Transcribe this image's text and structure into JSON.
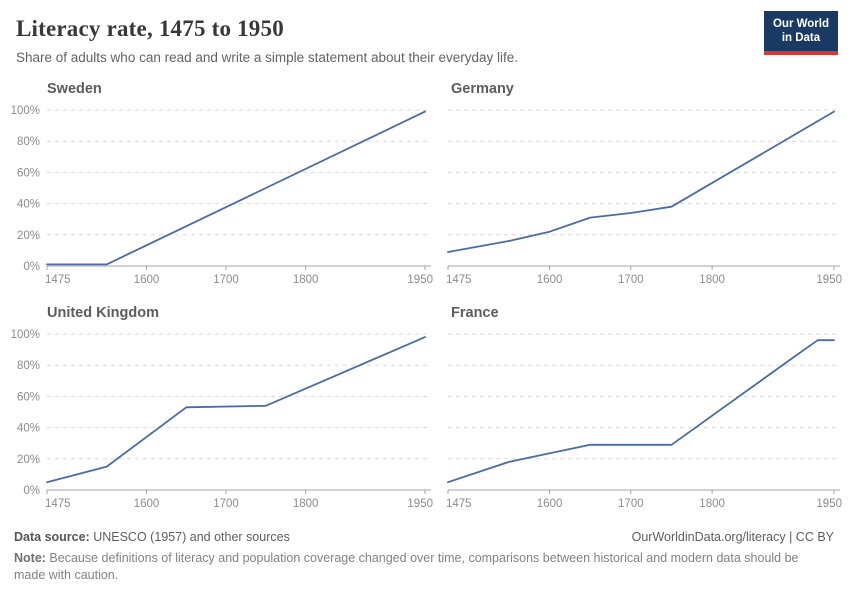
{
  "header": {
    "title": "Literacy rate, 1475 to 1950",
    "subtitle": "Share of adults who can read and write a simple statement about their everyday life.",
    "logo": {
      "line1": "Our World",
      "line2": "in Data"
    }
  },
  "chart_data": {
    "type": "line",
    "x_ticks": [
      1475,
      1600,
      1700,
      1800,
      1950
    ],
    "y_ticks": [
      0,
      20,
      40,
      60,
      80,
      100
    ],
    "xlim": [
      1475,
      1950
    ],
    "ylim": [
      0,
      100
    ],
    "grid": "dashed-horizontal",
    "legend_position": "none",
    "x_unit": "year",
    "y_unit": "%",
    "facets": [
      {
        "title": "Sweden",
        "points": [
          [
            1475,
            1
          ],
          [
            1550,
            1
          ],
          [
            1950,
            99
          ]
        ]
      },
      {
        "title": "Germany",
        "points": [
          [
            1475,
            9
          ],
          [
            1550,
            16
          ],
          [
            1600,
            22
          ],
          [
            1650,
            31
          ],
          [
            1700,
            34
          ],
          [
            1750,
            38
          ],
          [
            1950,
            99
          ]
        ]
      },
      {
        "title": "United Kingdom",
        "points": [
          [
            1475,
            5
          ],
          [
            1550,
            15
          ],
          [
            1650,
            53
          ],
          [
            1750,
            54
          ],
          [
            1950,
            98
          ]
        ]
      },
      {
        "title": "France",
        "points": [
          [
            1475,
            5
          ],
          [
            1550,
            18
          ],
          [
            1650,
            29
          ],
          [
            1750,
            29
          ],
          [
            1900,
            85
          ],
          [
            1930,
            96
          ],
          [
            1950,
            96
          ]
        ]
      }
    ]
  },
  "footer": {
    "source_label": "Data source:",
    "source_text": " UNESCO (1957) and other sources",
    "credit": "OurWorldinData.org/literacy | CC BY",
    "note_label": "Note:",
    "note_text": " Because definitions of literacy and population coverage changed over time, comparisons between historical and modern data should be made with caution."
  },
  "colors": {
    "line": "#4a6ba3",
    "grid": "#d9d9d9",
    "axis": "#a3a3a3",
    "tick_label": "#8c8c8c",
    "logo_bg": "#1a3a63",
    "logo_accent": "#d73a34"
  }
}
